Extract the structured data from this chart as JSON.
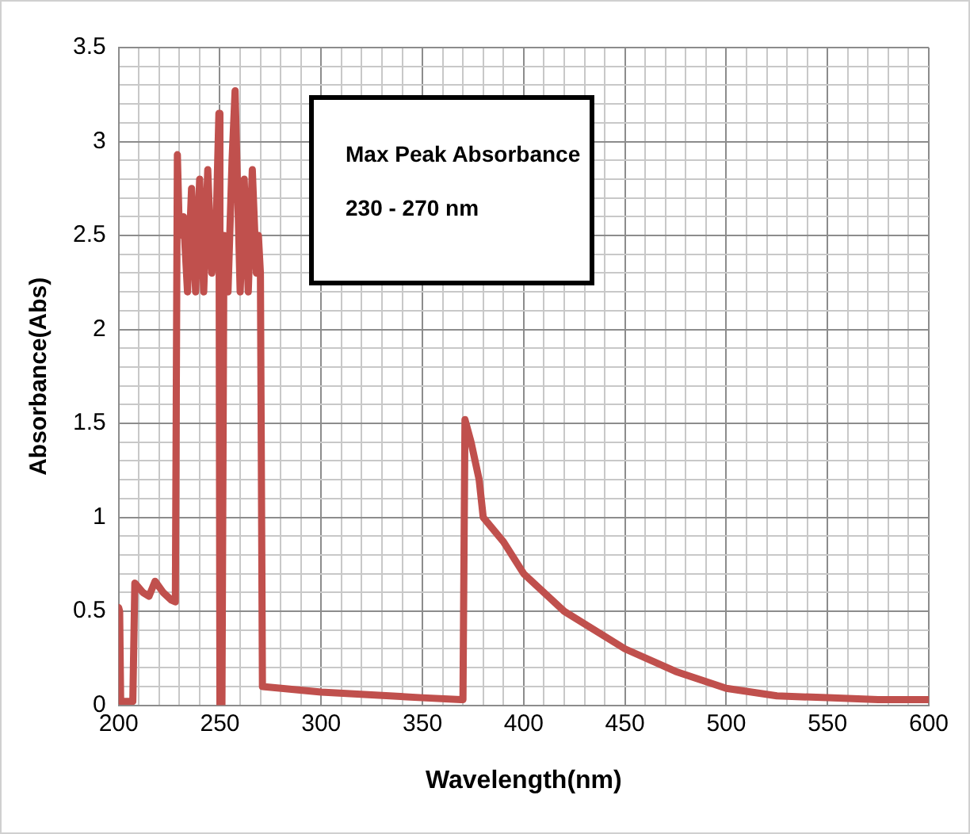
{
  "chart_data": {
    "type": "line",
    "xlabel": "Wavelength(nm)",
    "ylabel": "Absorbance(Abs)",
    "annotations": [
      "Max Peak Absorbance",
      "230 - 270 nm"
    ],
    "grid": true,
    "legend": false,
    "marker": "none",
    "line_style": "solid",
    "xlim": [
      200,
      600
    ],
    "ylim": [
      0,
      3.5
    ],
    "xticks": [
      200,
      {
        "value": 210,
        "label": null
      },
      {
        "value": 220,
        "label": null
      },
      {
        "value": 230,
        "label": null
      },
      {
        "value": 240,
        "label": null
      },
      250,
      {
        "value": 260,
        "label": null
      },
      {
        "value": 270,
        "label": null
      },
      {
        "value": 280,
        "label": null
      },
      {
        "value": 290,
        "label": null
      },
      300,
      {
        "value": 310,
        "label": null
      },
      {
        "value": 320,
        "label": null
      },
      {
        "value": 330,
        "label": null
      },
      {
        "value": 340,
        "label": null
      },
      350,
      {
        "value": 360,
        "label": null
      },
      {
        "value": 370,
        "label": null
      },
      {
        "value": 380,
        "label": null
      },
      {
        "value": 390,
        "label": null
      },
      400,
      {
        "value": 410,
        "label": null
      },
      {
        "value": 420,
        "label": null
      },
      {
        "value": 430,
        "label": null
      },
      {
        "value": 440,
        "label": null
      },
      450,
      {
        "value": 460,
        "label": null
      },
      {
        "value": 470,
        "label": null
      },
      {
        "value": 480,
        "label": null
      },
      {
        "value": 490,
        "label": null
      },
      500,
      {
        "value": 510,
        "label": null
      },
      {
        "value": 520,
        "label": null
      },
      {
        "value": 530,
        "label": null
      },
      {
        "value": 540,
        "label": null
      },
      550,
      {
        "value": 560,
        "label": null
      },
      {
        "value": 570,
        "label": null
      },
      {
        "value": 580,
        "label": null
      },
      {
        "value": 590,
        "label": null
      },
      600
    ],
    "yticks": [
      0,
      {
        "value": 0.1,
        "label": null
      },
      {
        "value": 0.2,
        "label": null
      },
      {
        "value": 0.3,
        "label": null
      },
      {
        "value": 0.4,
        "label": null
      },
      0.5,
      {
        "value": 0.6,
        "label": null
      },
      {
        "value": 0.7,
        "label": null
      },
      {
        "value": 0.8,
        "label": null
      },
      {
        "value": 0.9,
        "label": null
      },
      1,
      {
        "value": 1.1,
        "label": null
      },
      {
        "value": 1.2,
        "label": null
      },
      {
        "value": 1.3,
        "label": null
      },
      {
        "value": 1.4,
        "label": null
      },
      1.5,
      {
        "value": 1.6,
        "label": null
      },
      {
        "value": 1.7,
        "label": null
      },
      {
        "value": 1.8,
        "label": null
      },
      {
        "value": 1.9,
        "label": null
      },
      2,
      {
        "value": 2.1,
        "label": null
      },
      {
        "value": 2.2,
        "label": null
      },
      {
        "value": 2.3,
        "label": null
      },
      {
        "value": 2.4,
        "label": null
      },
      2.5,
      {
        "value": 2.6,
        "label": null
      },
      {
        "value": 2.7,
        "label": null
      },
      {
        "value": 2.8,
        "label": null
      },
      {
        "value": 2.9,
        "label": null
      },
      3,
      {
        "value": 3.1,
        "label": null
      },
      {
        "value": 3.2,
        "label": null
      },
      {
        "value": 3.3,
        "label": null
      },
      {
        "value": 3.4,
        "label": null
      },
      3.5
    ],
    "series": [
      {
        "color": "#c0504d",
        "x": [
          200,
          200.5,
          201,
          207,
          208,
          212,
          215,
          218,
          222,
          226,
          228,
          229,
          230,
          232,
          234,
          236,
          238,
          240,
          242,
          244,
          246,
          248,
          249.5,
          250,
          251,
          252,
          254,
          256,
          257.5,
          260,
          262,
          264,
          266,
          268,
          269,
          270,
          271,
          300,
          350,
          369,
          370,
          371,
          374,
          378,
          380,
          390,
          400,
          420,
          450,
          475,
          500,
          525,
          550,
          575,
          600
        ],
        "values": [
          0.52,
          0.5,
          0.02,
          0.02,
          0.65,
          0.6,
          0.58,
          0.66,
          0.6,
          0.56,
          0.55,
          2.93,
          2.5,
          2.6,
          2.2,
          2.75,
          2.2,
          2.8,
          2.2,
          2.85,
          2.3,
          2.5,
          3.15,
          0,
          0,
          2.5,
          2.2,
          2.9,
          3.27,
          2.2,
          2.8,
          2.2,
          2.85,
          2.3,
          2.5,
          2.3,
          0.1,
          0.07,
          0.04,
          0.03,
          0.03,
          1.52,
          1.4,
          1.2,
          1.0,
          0.87,
          0.7,
          0.5,
          0.3,
          0.18,
          0.09,
          0.05,
          0.04,
          0.03,
          0.03
        ]
      }
    ]
  }
}
